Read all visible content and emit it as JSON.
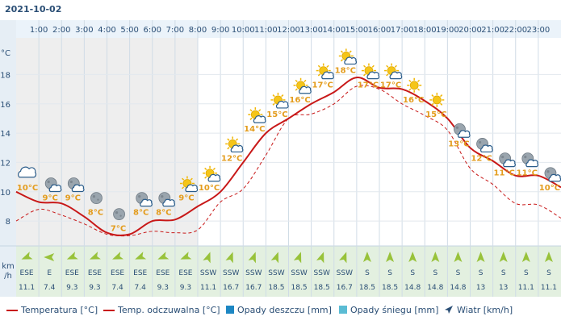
{
  "date": "2021-10-02",
  "chart_data": {
    "type": "line",
    "hours": [
      "1:00",
      "2:00",
      "3:00",
      "4:00",
      "5:00",
      "6:00",
      "7:00",
      "8:00",
      "9:00",
      "10:00",
      "11:00",
      "12:00",
      "13:00",
      "14:00",
      "15:00",
      "16:00",
      "17:00",
      "18:00",
      "19:00",
      "20:00",
      "21:00",
      "22:00",
      "23:00"
    ],
    "y_unit": "°C",
    "y_ticks": [
      8,
      10,
      12,
      14,
      16,
      18
    ],
    "ylim": [
      6.3,
      20.5
    ],
    "series": [
      {
        "name": "Temperatura [°C]",
        "color": "#c81818",
        "x": [
          0,
          1,
          2,
          3,
          4,
          5,
          6,
          7,
          8,
          9,
          10,
          11,
          12,
          13,
          14,
          15,
          16,
          17,
          18,
          19,
          20,
          21,
          22,
          23,
          24
        ],
        "values": [
          10.0,
          9.3,
          9.2,
          8.3,
          7.2,
          7.1,
          8.0,
          8.1,
          9.0,
          10.0,
          12.0,
          14.0,
          15.0,
          16.0,
          16.8,
          17.8,
          17.1,
          17.0,
          16.2,
          15.0,
          13.0,
          12.1,
          11.1,
          11.1,
          10.3
        ]
      },
      {
        "name": "Temp. odczuwalna [°C]",
        "color": "#c81818",
        "dashed": true,
        "x": [
          0,
          1,
          2,
          3,
          4,
          5,
          6,
          7,
          8,
          9,
          10,
          11,
          12,
          13,
          14,
          15,
          16,
          17,
          18,
          19,
          20,
          21,
          22,
          23,
          24
        ],
        "values": [
          8.0,
          8.8,
          8.4,
          7.8,
          7.1,
          7.0,
          7.3,
          7.2,
          7.4,
          9.3,
          10.2,
          12.5,
          15.0,
          15.3,
          16.0,
          17.2,
          17.0,
          16.0,
          15.2,
          14.2,
          11.6,
          10.5,
          9.2,
          9.1,
          8.2
        ]
      }
    ],
    "temp_labels": [
      "10°C",
      "9°C",
      "9°C",
      "8°C",
      "7°C",
      "8°C",
      "8°C",
      "9°C",
      "10°C",
      "12°C",
      "14°C",
      "15°C",
      "16°C",
      "17°C",
      "18°C",
      "17°C",
      "17°C",
      "16°C",
      "15°C",
      "13°C",
      "12°C",
      "11°C",
      "11°C",
      "10°C"
    ],
    "temp_label_values": [
      10.0,
      9.3,
      9.3,
      8.3,
      7.2,
      8.3,
      8.3,
      9.3,
      10.0,
      12.0,
      14.0,
      15.0,
      16.0,
      17.0,
      18.0,
      17.0,
      17.0,
      16.0,
      15.0,
      13.0,
      12.0,
      11.0,
      11.0,
      10.0
    ],
    "icons": [
      "cloud",
      "moon-cloud",
      "moon-cloud",
      "moon",
      "moon",
      "moon-cloud",
      "moon-cloud",
      "sun-cloud",
      "sun-cloud",
      "sun-cloud",
      "sun-cloud",
      "sun-cloud",
      "sun-cloud",
      "sun-cloud",
      "sun-cloud",
      "sun-cloud",
      "sun-cloud",
      "sun",
      "sun",
      "moon-cloud",
      "moon-cloud",
      "moon-cloud",
      "moon-cloud",
      "moon-cloud"
    ],
    "wind_unit": "km\n/h",
    "wind_dirs": [
      "ESE",
      "E",
      "ESE",
      "ESE",
      "ESE",
      "ESE",
      "ESE",
      "ESE",
      "SSW",
      "SSW",
      "SSW",
      "SSW",
      "SSW",
      "SSW",
      "SSW",
      "S",
      "S",
      "S",
      "S",
      "S",
      "S",
      "S",
      "S",
      "S"
    ],
    "wind_speeds": [
      "11.1",
      "7.4",
      "9.3",
      "9.3",
      "7.4",
      "7.4",
      "9.3",
      "9.3",
      "11.1",
      "16.7",
      "16.7",
      "18.5",
      "18.5",
      "18.5",
      "16.7",
      "18.5",
      "18.5",
      "14.8",
      "14.8",
      "14.8",
      "13",
      "13",
      "11.1",
      "11.1"
    ],
    "wind_angles": [
      -112,
      -90,
      -112,
      -112,
      -112,
      -112,
      -112,
      -112,
      20,
      20,
      20,
      20,
      20,
      20,
      20,
      0,
      0,
      0,
      0,
      0,
      0,
      0,
      0,
      0
    ]
  },
  "legend": {
    "temp": "Temperatura [°C]",
    "feels": "Temp. odczuwalna [°C]",
    "rain": "Opady deszczu [mm]",
    "snow": "Opady śniegu [mm]",
    "wind": "Wiatr [km/h]"
  },
  "colors": {
    "accent": "#c81818",
    "rain": "#1d87c3",
    "snow": "#5bbcd4",
    "night_band": "#eeeeee",
    "wind_arrow": "#98c23a",
    "label": "#e39c1d"
  }
}
